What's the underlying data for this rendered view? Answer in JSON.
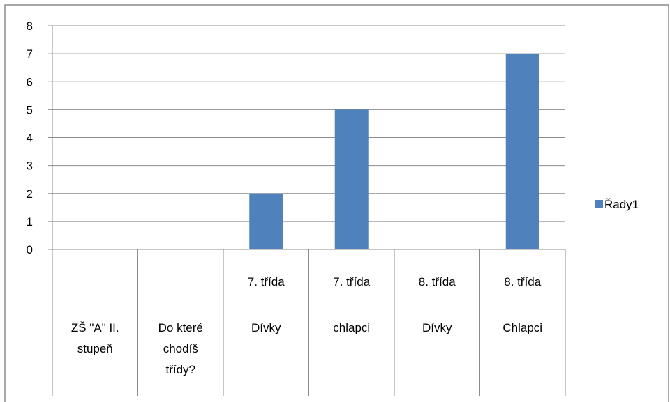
{
  "chart_data": {
    "type": "bar",
    "categories": [
      [
        "ZŠ \"A\" II.",
        "stupeň"
      ],
      [
        "Do které",
        "chodíš",
        "třídy?"
      ],
      [
        "7. třída",
        "Dívky"
      ],
      [
        "7. třída",
        "chlapci"
      ],
      [
        "8. třída",
        "Dívky"
      ],
      [
        "8. třída",
        "Chlapci"
      ]
    ],
    "series": [
      {
        "name": "Řady1",
        "values": [
          0,
          0,
          2,
          5,
          0,
          7
        ],
        "color": "#4F81BD"
      }
    ],
    "ylim": [
      0,
      8
    ],
    "yticks": [
      "0",
      "1",
      "2",
      "3",
      "4",
      "5",
      "6",
      "7",
      "8"
    ],
    "grid": true,
    "legend_position": "right"
  }
}
